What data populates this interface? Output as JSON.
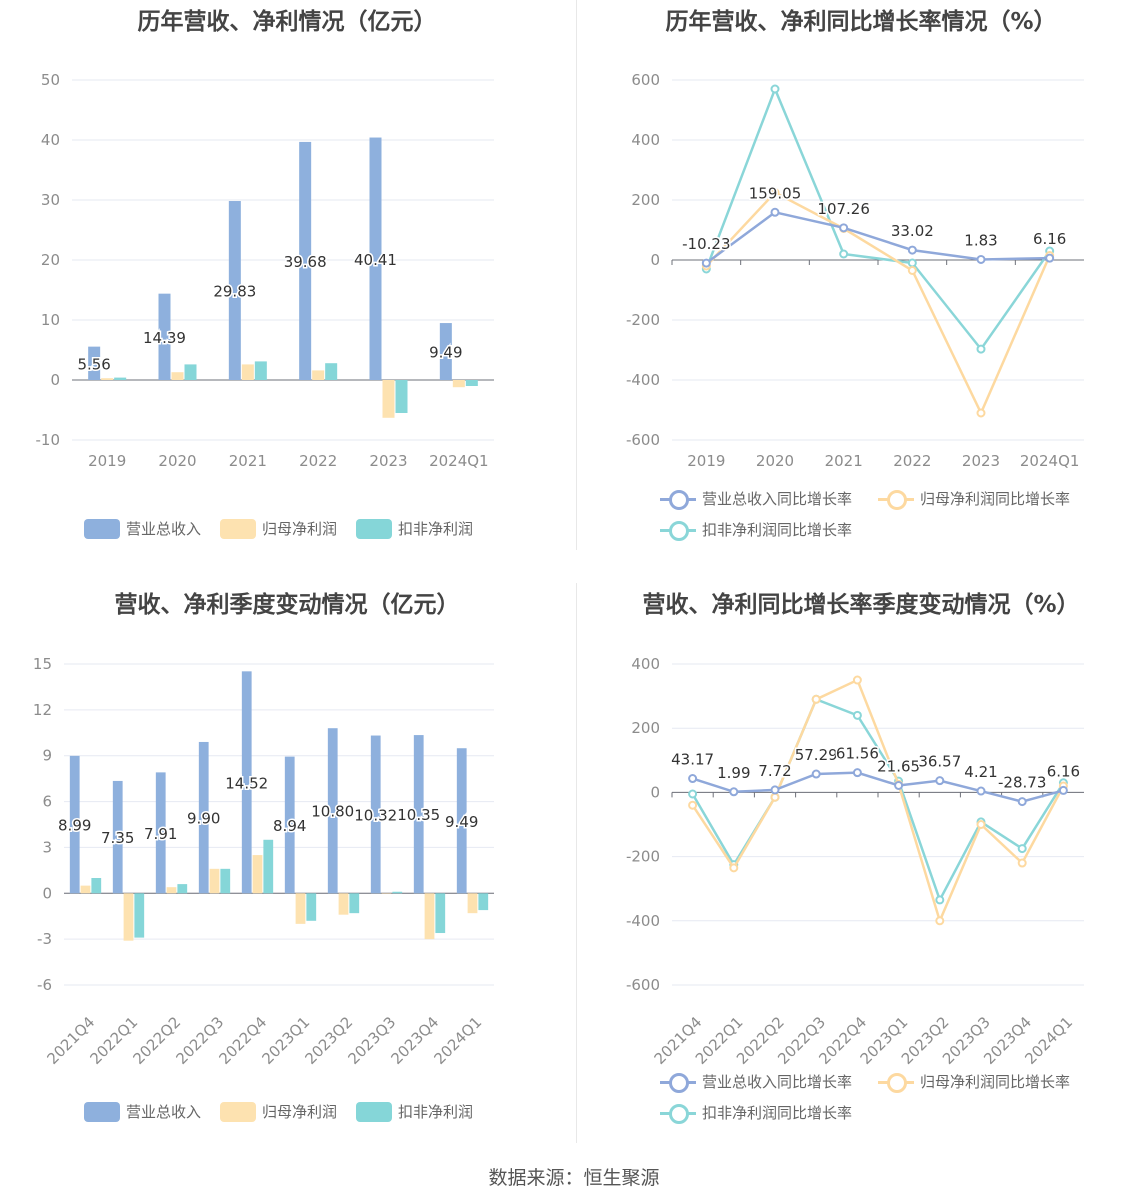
{
  "footer": {
    "source": "数据来源：恒生聚源"
  },
  "colors": {
    "revenue": "#8eb0dd",
    "net_profit": "#fde2b0",
    "deducted_profit": "#85d6d8",
    "revenue_line": "#8fa8da",
    "net_profit_line": "#fdd9a0",
    "deducted_line": "#8ad6d8"
  },
  "legend": {
    "bar": [
      "营业总收入",
      "归母净利润",
      "扣非净利润"
    ],
    "line": [
      "营业总收入同比增长率",
      "归母净利润同比增长率",
      "扣非净利润同比增长率"
    ]
  },
  "chart_data": [
    {
      "type": "bar",
      "title": "历年营收、净利情况（亿元）",
      "categories": [
        "2019",
        "2020",
        "2021",
        "2022",
        "2023",
        "2024Q1"
      ],
      "ylim": [
        -10,
        50
      ],
      "yticks": [
        -10,
        0,
        10,
        20,
        30,
        40,
        50
      ],
      "grid": true,
      "legend_position": "bottom",
      "series": [
        {
          "name": "营业总收入",
          "values": [
            5.56,
            14.39,
            29.83,
            39.68,
            40.41,
            9.49
          ],
          "labels": [
            "5.56",
            "14.39",
            "29.83",
            "39.68",
            "40.41",
            "9.49"
          ]
        },
        {
          "name": "归母净利润",
          "values": [
            0.3,
            1.3,
            2.6,
            1.6,
            -6.3,
            -1.2
          ]
        },
        {
          "name": "扣非净利润",
          "values": [
            0.4,
            2.6,
            3.1,
            2.8,
            -5.5,
            -1.0
          ]
        }
      ]
    },
    {
      "type": "line",
      "title": "历年营收、净利同比增长率情况（%）",
      "categories": [
        "2019",
        "2020",
        "2021",
        "2022",
        "2023",
        "2024Q1"
      ],
      "ylim": [
        -600,
        600
      ],
      "yticks": [
        -600,
        -400,
        -200,
        0,
        200,
        400,
        600
      ],
      "grid": true,
      "legend_position": "bottom",
      "series": [
        {
          "name": "营业总收入同比增长率",
          "values": [
            -10.23,
            159.05,
            107.26,
            33.02,
            1.83,
            6.16
          ],
          "labels": [
            "-10.23",
            "159.05",
            "107.26",
            "33.02",
            "1.83",
            "6.16"
          ]
        },
        {
          "name": "归母净利润同比增长率",
          "values": [
            -20,
            225,
            105,
            -35,
            -510,
            15
          ]
        },
        {
          "name": "扣非净利润同比增长率",
          "values": [
            -30,
            570,
            20,
            -10,
            -297,
            30
          ]
        }
      ]
    },
    {
      "type": "bar",
      "title": "营收、净利季度变动情况（亿元）",
      "categories": [
        "2021Q4",
        "2022Q1",
        "2022Q2",
        "2022Q3",
        "2022Q4",
        "2023Q1",
        "2023Q2",
        "2023Q3",
        "2023Q4",
        "2024Q1"
      ],
      "ylim": [
        -6,
        15
      ],
      "yticks": [
        -6,
        -3,
        0,
        3,
        6,
        9,
        12,
        15
      ],
      "grid": true,
      "legend_position": "bottom",
      "series": [
        {
          "name": "营业总收入",
          "values": [
            8.99,
            7.35,
            7.91,
            9.9,
            14.52,
            8.94,
            10.8,
            10.32,
            10.35,
            9.49
          ],
          "labels": [
            "8.99",
            "7.35",
            "7.91",
            "9.90",
            "14.52",
            "8.94",
            "10.80",
            "10.32",
            "10.35",
            "9.49"
          ]
        },
        {
          "name": "归母净利润",
          "values": [
            0.5,
            -3.1,
            0.4,
            1.6,
            2.5,
            -2.0,
            -1.4,
            0.0,
            -3.0,
            -1.3
          ]
        },
        {
          "name": "扣非净利润",
          "values": [
            1.0,
            -2.9,
            0.6,
            1.6,
            3.5,
            -1.8,
            -1.3,
            0.1,
            -2.6,
            -1.1
          ]
        }
      ]
    },
    {
      "type": "line",
      "title": "营收、净利同比增长率季度变动情况（%）",
      "categories": [
        "2021Q4",
        "2022Q1",
        "2022Q2",
        "2022Q3",
        "2022Q4",
        "2023Q1",
        "2023Q2",
        "2023Q3",
        "2023Q4",
        "2024Q1"
      ],
      "ylim": [
        -600,
        400
      ],
      "yticks": [
        -600,
        -400,
        -200,
        0,
        200,
        400
      ],
      "grid": true,
      "legend_position": "bottom",
      "series": [
        {
          "name": "营业总收入同比增长率",
          "values": [
            43.17,
            1.99,
            7.72,
            57.29,
            61.56,
            21.65,
            36.57,
            4.21,
            -28.73,
            6.16
          ],
          "labels": [
            "43.17",
            "1.99",
            "7.72",
            "57.29",
            "61.56",
            "21.65",
            "36.57",
            "4.21",
            "-28.73",
            "6.16"
          ]
        },
        {
          "name": "归母净利润同比增长率",
          "values": [
            -40,
            -235,
            -15,
            290,
            350,
            25,
            -400,
            -100,
            -220,
            20
          ]
        },
        {
          "name": "扣非净利润同比增长率",
          "values": [
            -5,
            -225,
            -15,
            290,
            240,
            35,
            -335,
            -92,
            -175,
            30
          ]
        }
      ]
    }
  ]
}
